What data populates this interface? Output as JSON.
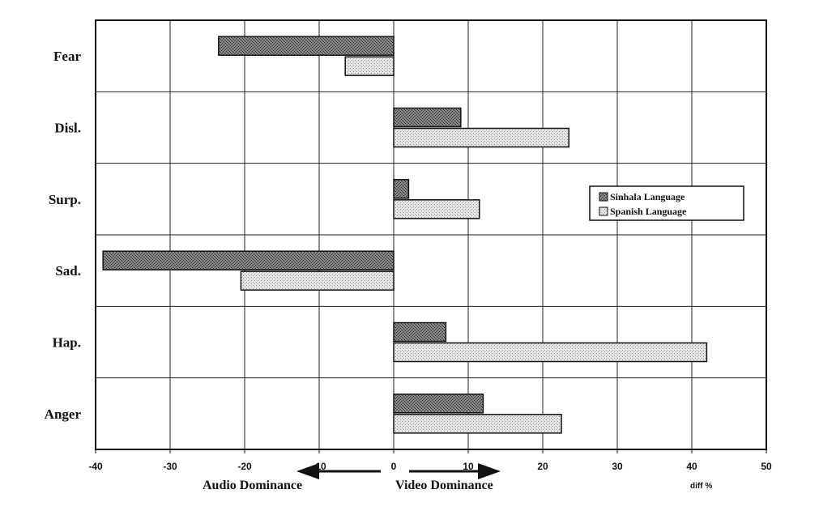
{
  "chart_data": {
    "type": "bar",
    "orientation": "horizontal",
    "categories": [
      "Fear",
      "Disl.",
      "Surp.",
      "Sad.",
      "Hap.",
      "Anger"
    ],
    "series": [
      {
        "name": "Sinhala Language",
        "values": [
          -23.5,
          9,
          2,
          -39,
          7,
          12
        ],
        "color": "#555555"
      },
      {
        "name": "Spanish Language",
        "values": [
          -6.5,
          23.5,
          11.5,
          -20.5,
          42,
          22.5
        ],
        "color": "#c8c8c8"
      }
    ],
    "xlim": [
      -40,
      50
    ],
    "xticks": [
      -40,
      -30,
      -20,
      -10,
      0,
      10,
      20,
      30,
      40,
      50
    ],
    "xtick_labels": [
      "-40",
      "-30",
      "-20",
      "-10",
      "0",
      "10",
      "20",
      "30",
      "40",
      "50"
    ],
    "xlabel": "diff %",
    "annotations": {
      "left": "Audio Dominance",
      "right": "Video Dominance"
    },
    "grid": true,
    "legend_position": "right"
  }
}
